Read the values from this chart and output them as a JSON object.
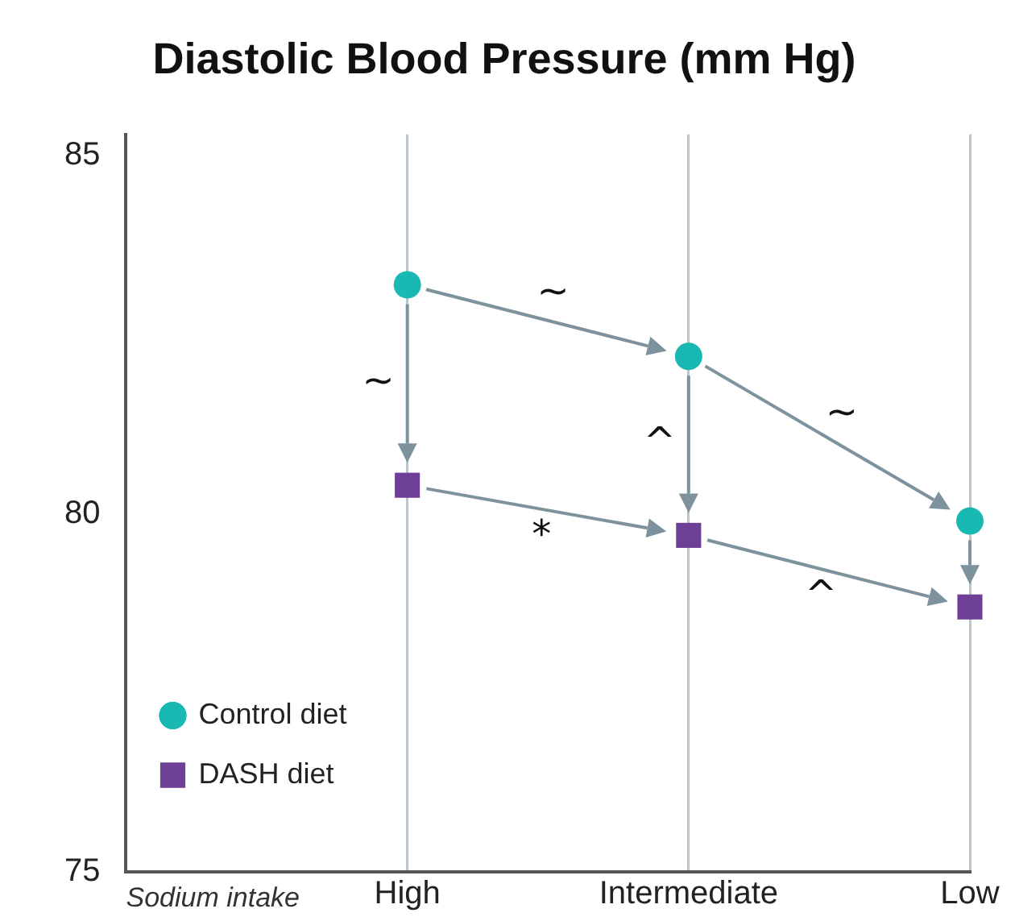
{
  "chart_data": {
    "type": "scatter",
    "title": "Diastolic Blood Pressure (mm Hg)",
    "xlabel": "Sodium intake",
    "categories": [
      "High",
      "Intermediate",
      "Low"
    ],
    "series": [
      {
        "name": "Control diet",
        "color": "#1ab8b2",
        "marker": "circle",
        "values": [
          83.2,
          82.2,
          79.9
        ]
      },
      {
        "name": "DASH diet",
        "color": "#6e3f97",
        "marker": "square",
        "values": [
          80.4,
          79.7,
          78.7
        ]
      }
    ],
    "ylim": [
      75,
      85.3
    ],
    "yticks": [
      75,
      80,
      85
    ],
    "grid": "x",
    "legend": "bottom left",
    "annotations": [
      "~",
      "~",
      "*",
      "^",
      "~",
      "^"
    ]
  }
}
